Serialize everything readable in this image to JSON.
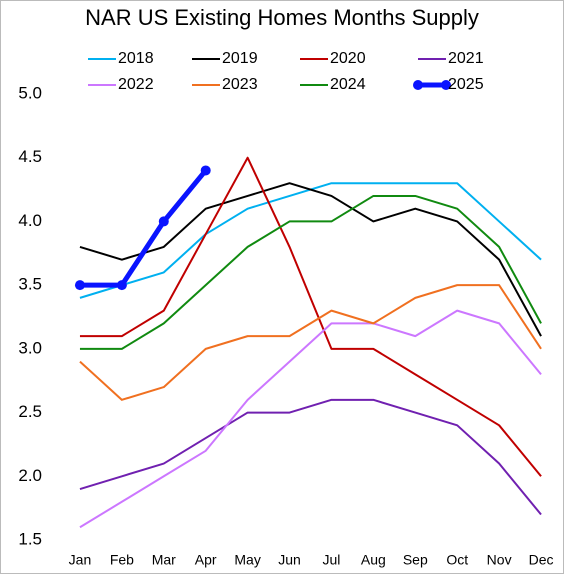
{
  "chart_data": {
    "type": "line",
    "title": "NAR US Existing Homes Months Supply",
    "categories": [
      "Jan",
      "Feb",
      "Mar",
      "Apr",
      "May",
      "Jun",
      "Jul",
      "Aug",
      "Sep",
      "Oct",
      "Nov",
      "Dec"
    ],
    "ylim": [
      1.5,
      5.0
    ],
    "yticks": [
      {
        "value": 1.5,
        "label": "1.5"
      },
      {
        "value": 2.0,
        "label": "2.0"
      },
      {
        "value": 2.5,
        "label": "2.5"
      },
      {
        "value": 3.0,
        "label": "3.0"
      },
      {
        "value": 3.5,
        "label": "3.5"
      },
      {
        "value": 4.0,
        "label": "4.0"
      },
      {
        "value": 4.5,
        "label": "4.5"
      },
      {
        "value": 5.0,
        "label": "5.0"
      }
    ],
    "grid": false,
    "series": [
      {
        "name": "2018",
        "color": "#00b0f0",
        "values": [
          3.4,
          3.5,
          3.6,
          3.9,
          4.1,
          4.2,
          4.3,
          4.3,
          4.3,
          4.3,
          4.0,
          3.7
        ]
      },
      {
        "name": "2019",
        "color": "#000000",
        "values": [
          3.8,
          3.7,
          3.8,
          4.1,
          4.2,
          4.3,
          4.2,
          4.0,
          4.1,
          4.0,
          3.7,
          3.1
        ]
      },
      {
        "name": "2020",
        "color": "#c00000",
        "values": [
          3.1,
          3.1,
          3.3,
          3.9,
          4.5,
          3.8,
          3.0,
          3.0,
          2.8,
          2.6,
          2.4,
          2.0
        ]
      },
      {
        "name": "2021",
        "color": "#7020b0",
        "values": [
          1.9,
          2.0,
          2.1,
          2.3,
          2.5,
          2.5,
          2.6,
          2.6,
          2.5,
          2.4,
          2.1,
          1.7
        ]
      },
      {
        "name": "2022",
        "color": "#cc77ff",
        "values": [
          1.6,
          1.8,
          2.0,
          2.2,
          2.6,
          2.9,
          3.2,
          3.2,
          3.1,
          3.3,
          3.2,
          2.8
        ]
      },
      {
        "name": "2023",
        "color": "#f07020",
        "values": [
          2.9,
          2.6,
          2.7,
          3.0,
          3.1,
          3.1,
          3.3,
          3.2,
          3.4,
          3.5,
          3.5,
          3.0
        ]
      },
      {
        "name": "2024",
        "color": "#108a10",
        "values": [
          3.0,
          3.0,
          3.2,
          3.5,
          3.8,
          4.0,
          4.0,
          4.2,
          4.2,
          4.1,
          3.8,
          3.2
        ]
      },
      {
        "name": "2025",
        "color": "#0a14ff",
        "marker": "circle",
        "linewidth": 5,
        "values": [
          3.5,
          3.5,
          4.0,
          4.4,
          null,
          null,
          null,
          null,
          null,
          null,
          null,
          null
        ]
      }
    ]
  }
}
